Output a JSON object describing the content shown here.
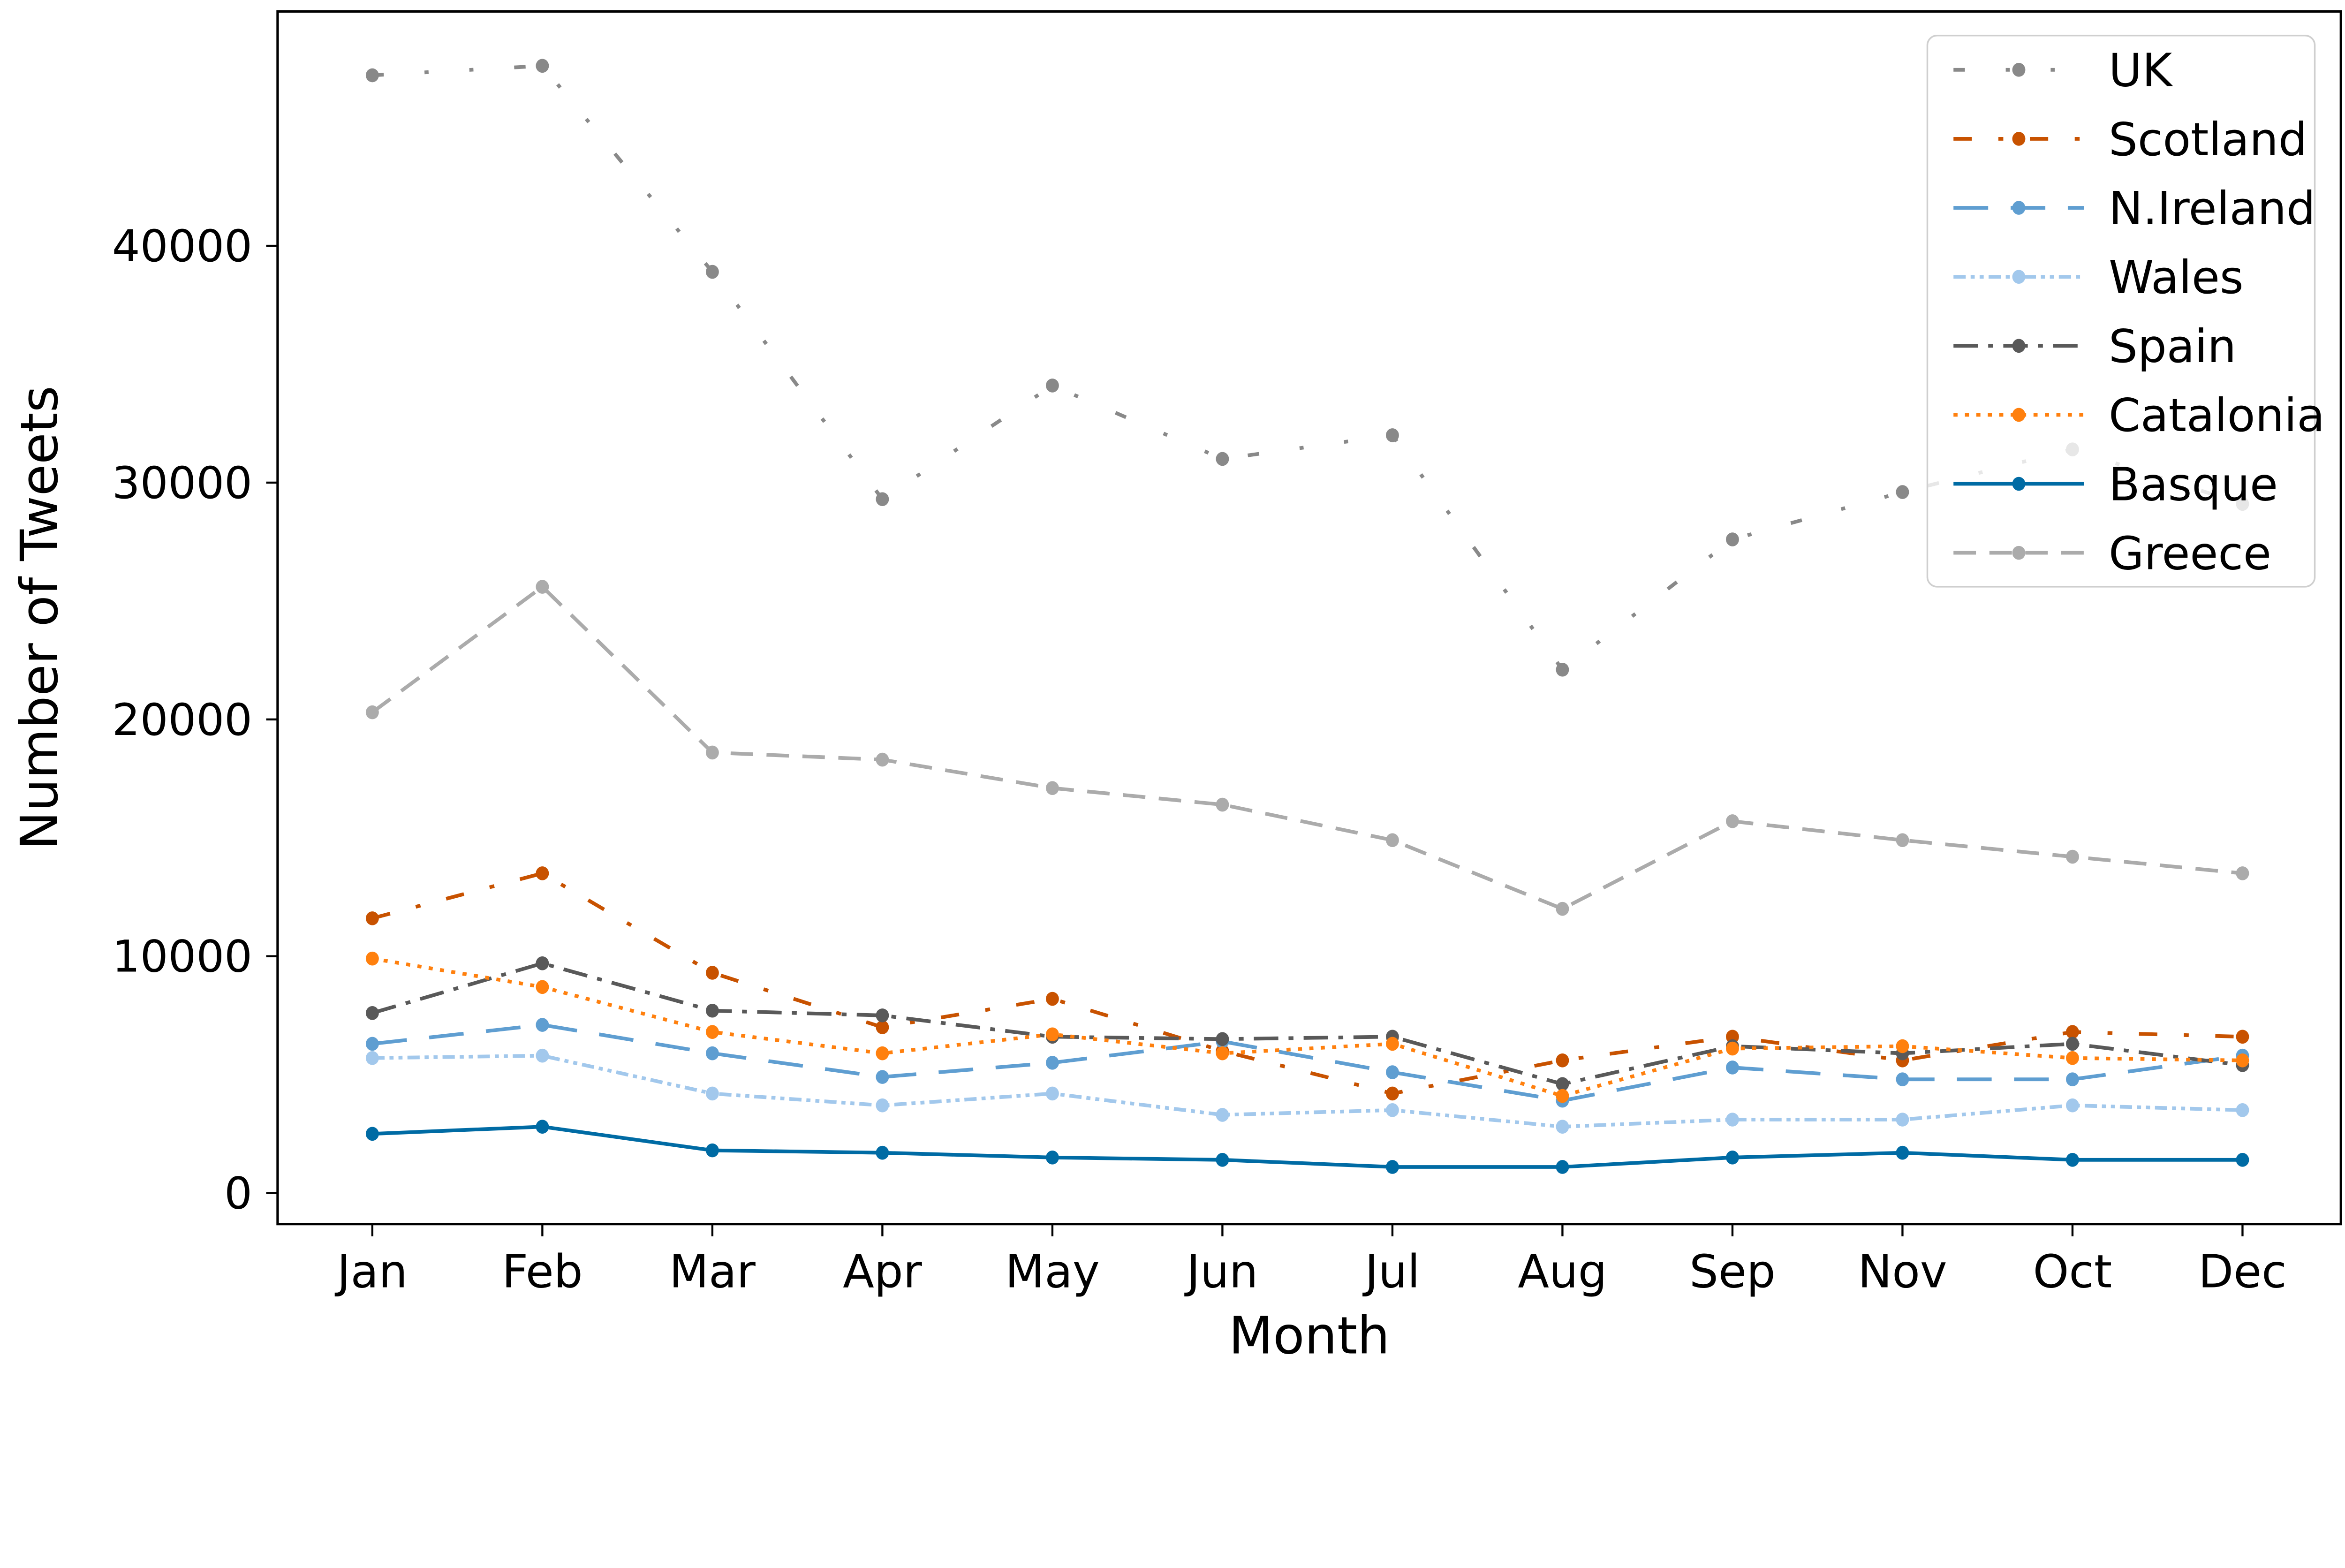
{
  "chart_data": {
    "type": "line",
    "title": "",
    "xlabel": "Month",
    "ylabel": "Number of Tweets",
    "categories": [
      "Jan",
      "Feb",
      "Mar",
      "Apr",
      "May",
      "Jun",
      "Jul",
      "Aug",
      "Sep",
      "Nov",
      "Oct",
      "Dec"
    ],
    "yticks": [
      0,
      10000,
      20000,
      30000,
      40000
    ],
    "ylim": [
      -1200,
      49900
    ],
    "grid": false,
    "legend_position": "upper right",
    "legend_border_color": "#cfcfcf",
    "axis_color": "#000000",
    "series": [
      {
        "name": "UK",
        "color": "#898989",
        "linestyle": "loosely-dashdotdotted",
        "dasharray": "28 100 10 100 10 100",
        "values": [
          47200,
          47600,
          38900,
          29300,
          34100,
          31000,
          32000,
          22100,
          27600,
          29600,
          31400,
          29100
        ]
      },
      {
        "name": "Scotland",
        "color": "#C85200",
        "linestyle": "loosely-dashdotted",
        "dasharray": "45 65 12 65",
        "values": [
          11600,
          13500,
          9300,
          7000,
          8200,
          6000,
          4200,
          5600,
          6600,
          5600,
          6800,
          6600
        ]
      },
      {
        "name": "N.Ireland",
        "color": "#5F9ED1",
        "linestyle": "dashed-long",
        "dasharray": "85 55",
        "values": [
          6300,
          7100,
          5900,
          4900,
          5500,
          6400,
          5100,
          3900,
          5300,
          4800,
          4800,
          5800
        ]
      },
      {
        "name": "Wales",
        "color": "#A2C8EC",
        "linestyle": "densely-dashdotdotted",
        "dasharray": "30 12 10 12 10 12",
        "values": [
          5700,
          5800,
          4200,
          3700,
          4200,
          3300,
          3500,
          2800,
          3100,
          3100,
          3700,
          3500
        ]
      },
      {
        "name": "Spain",
        "color": "#595959",
        "linestyle": "dashdot",
        "dasharray": "60 25 12 25",
        "values": [
          7600,
          9700,
          7700,
          7500,
          6600,
          6500,
          6600,
          4600,
          6200,
          5900,
          6300,
          5400
        ]
      },
      {
        "name": "Catalonia",
        "color": "#FF800E",
        "linestyle": "dotted",
        "dasharray": "10 18",
        "values": [
          9900,
          8700,
          6800,
          5900,
          6700,
          5900,
          6300,
          4100,
          6100,
          6200,
          5700,
          5600
        ]
      },
      {
        "name": "Basque",
        "color": "#006BA4",
        "linestyle": "solid",
        "dasharray": "",
        "values": [
          2500,
          2800,
          1800,
          1700,
          1500,
          1400,
          1100,
          1100,
          1500,
          1700,
          1400,
          1400
        ]
      },
      {
        "name": "Greece",
        "color": "#ABABAB",
        "linestyle": "dashed",
        "dasharray": "55 33",
        "values": [
          20300,
          25600,
          18600,
          18300,
          17100,
          16400,
          14900,
          12000,
          15700,
          14900,
          14200,
          13500
        ]
      }
    ]
  }
}
